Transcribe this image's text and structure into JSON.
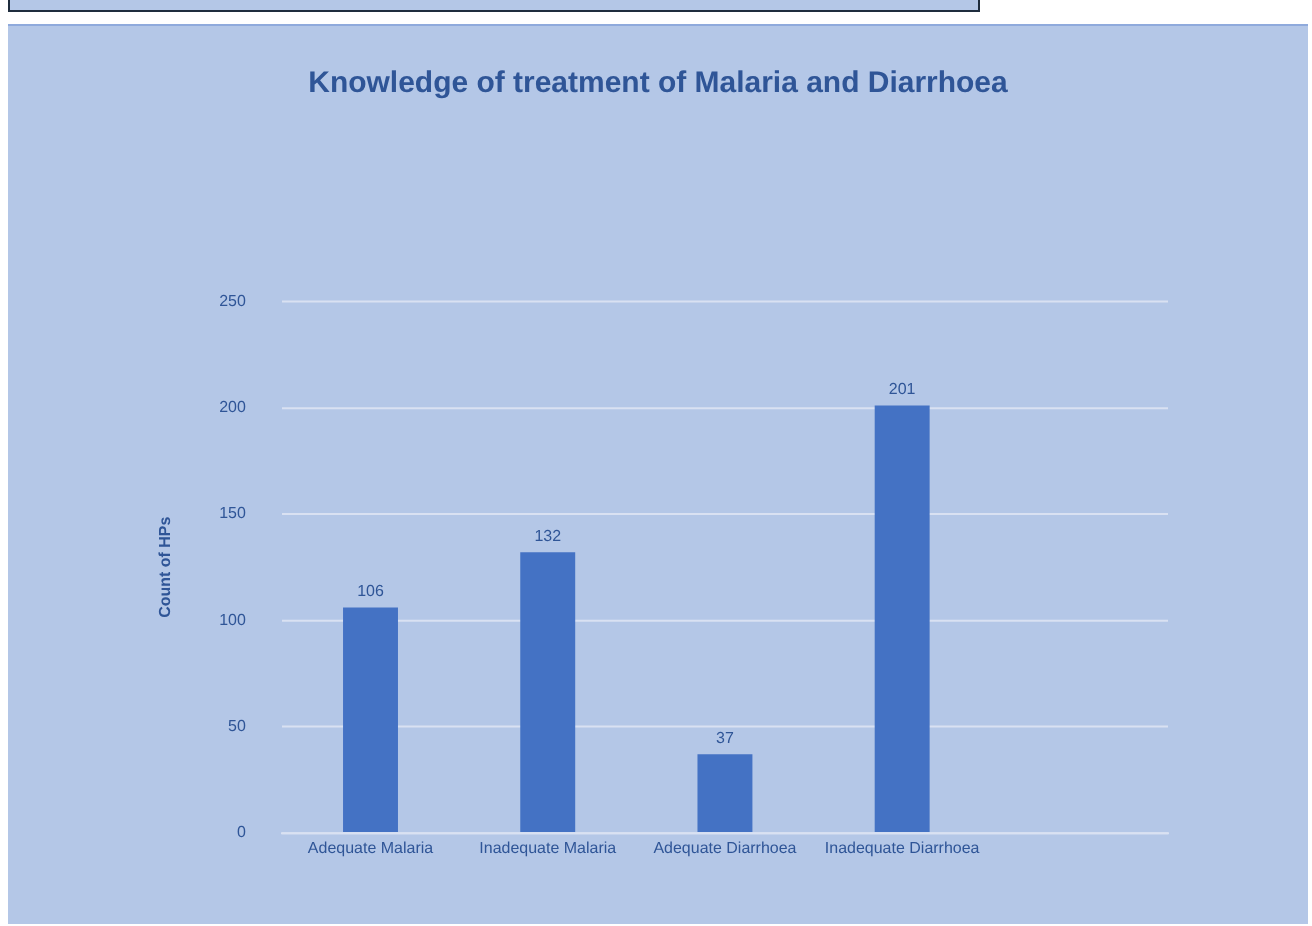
{
  "chart_data": {
    "type": "bar",
    "title": "Knowledge of treatment of Malaria and Diarrhoea",
    "ylabel": "Count of HPs",
    "categories": [
      "Adequate Malaria",
      "Inadequate Malaria",
      "Adequate Diarrhoea",
      "Inadequate Diarrhoea",
      null
    ],
    "values": [
      106,
      132,
      37,
      201,
      null
    ],
    "color": "#4472c4",
    "ylim": [
      0,
      250
    ],
    "yticks": [
      0,
      50,
      100,
      150,
      200,
      250
    ],
    "grid": "y",
    "data_labels": true
  }
}
